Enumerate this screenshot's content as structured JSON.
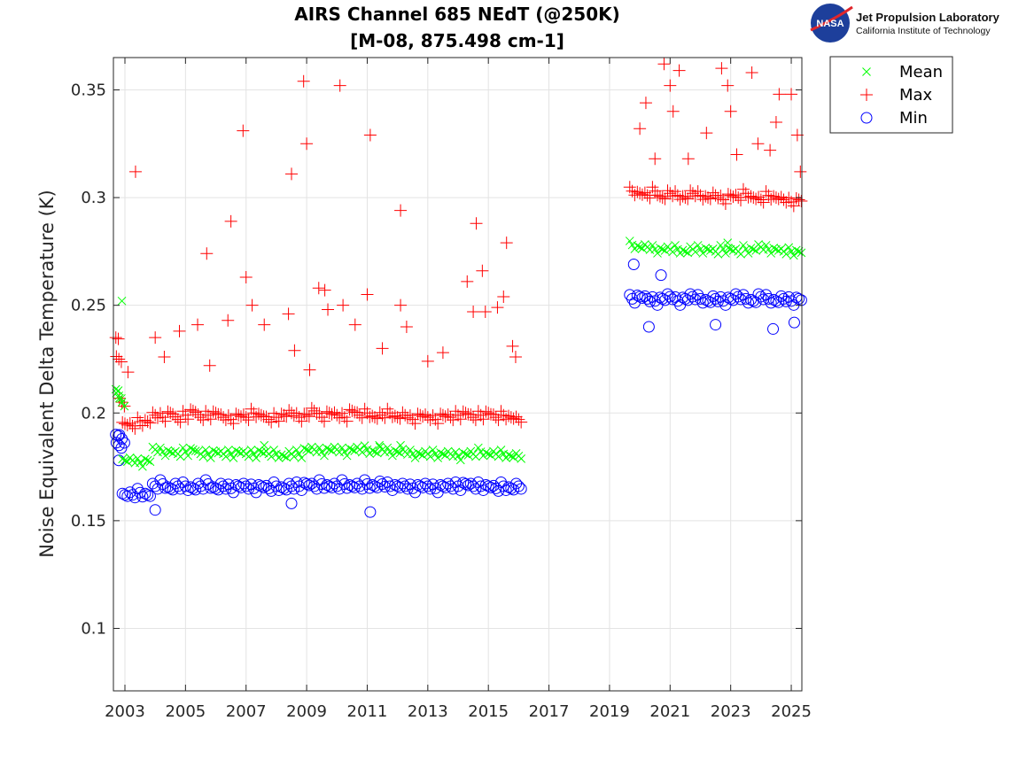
{
  "logo": {
    "agency": "NASA",
    "lab": "Jet Propulsion Laboratory",
    "institute": "California Institute of Technology"
  },
  "chart_data": {
    "type": "scatter",
    "title": [
      "AIRS Channel 685 NEdT (@250K)",
      "[M-08, 875.498 cm-1]"
    ],
    "xlabel": "",
    "ylabel": "Noise Equivalent Delta Temperature (K)",
    "xlim": [
      2002.62,
      2025.35
    ],
    "ylim": [
      0.071,
      0.365
    ],
    "xticks": [
      2003,
      2005,
      2007,
      2009,
      2011,
      2013,
      2015,
      2017,
      2019,
      2021,
      2023,
      2025
    ],
    "xtick_labels": [
      "2003",
      "2005",
      "2007",
      "2009",
      "2011",
      "2013",
      "2015",
      "2017",
      "2019",
      "2021",
      "2023",
      "2025"
    ],
    "yticks": [
      0.1,
      0.15,
      0.2,
      0.25,
      0.3,
      0.35
    ],
    "ytick_labels": [
      "0.1",
      "0.15",
      "0.2",
      "0.25",
      "0.3",
      "0.35"
    ],
    "grid": true,
    "legend_position": "outside-top-right",
    "x": [
      2002.7,
      2002.8,
      2002.9,
      2003.0,
      2003.25,
      2003.5,
      2003.75,
      2004.0,
      2004.25,
      2004.5,
      2004.75,
      2005.0,
      2005.25,
      2005.5,
      2005.75,
      2006.0,
      2006.25,
      2006.5,
      2006.75,
      2007.0,
      2007.25,
      2007.5,
      2007.75,
      2008.0,
      2008.25,
      2008.5,
      2008.75,
      2009.0,
      2009.25,
      2009.5,
      2009.75,
      2010.0,
      2010.25,
      2010.5,
      2010.75,
      2011.0,
      2011.25,
      2011.5,
      2011.75,
      2012.0,
      2012.25,
      2012.5,
      2012.75,
      2013.0,
      2013.25,
      2013.5,
      2013.75,
      2014.0,
      2014.25,
      2014.5,
      2014.75,
      2015.0,
      2015.25,
      2015.5,
      2015.75,
      2016.0,
      2019.75,
      2020.0,
      2020.25,
      2020.5,
      2020.75,
      2021.0,
      2021.25,
      2021.5,
      2021.75,
      2022.0,
      2022.25,
      2022.5,
      2022.75,
      2023.0,
      2023.25,
      2023.5,
      2023.75,
      2024.0,
      2024.25,
      2024.5,
      2024.75,
      2025.0,
      2025.25
    ],
    "series": [
      {
        "name": "Mean",
        "marker": "x",
        "color": "#00ff00",
        "values": [
          0.211,
          0.208,
          0.205,
          0.178,
          0.178,
          0.177,
          0.178,
          0.183,
          0.182,
          0.182,
          0.181,
          0.182,
          0.183,
          0.181,
          0.181,
          0.182,
          0.181,
          0.181,
          0.182,
          0.181,
          0.181,
          0.182,
          0.181,
          0.181,
          0.18,
          0.181,
          0.181,
          0.183,
          0.183,
          0.182,
          0.183,
          0.183,
          0.182,
          0.183,
          0.183,
          0.183,
          0.182,
          0.183,
          0.182,
          0.182,
          0.182,
          0.181,
          0.181,
          0.181,
          0.181,
          0.181,
          0.181,
          0.18,
          0.181,
          0.181,
          0.182,
          0.181,
          0.181,
          0.181,
          0.18,
          0.18,
          0.278,
          0.277,
          0.277,
          0.276,
          0.276,
          0.276,
          0.276,
          0.275,
          0.276,
          0.276,
          0.276,
          0.275,
          0.276,
          0.276,
          0.275,
          0.276,
          0.276,
          0.277,
          0.276,
          0.276,
          0.275,
          0.275,
          0.275
        ],
        "outliers": [
          [
            2002.9,
            0.252
          ],
          [
            2007.6,
            0.185
          ],
          [
            2011.4,
            0.185
          ],
          [
            2012.1,
            0.185
          ],
          [
            2022.9,
            0.279
          ]
        ]
      },
      {
        "name": "Max",
        "marker": "+",
        "color": "#ff0000",
        "values": [
          0.235,
          0.225,
          0.205,
          0.195,
          0.194,
          0.196,
          0.196,
          0.199,
          0.198,
          0.2,
          0.197,
          0.199,
          0.201,
          0.198,
          0.199,
          0.2,
          0.198,
          0.197,
          0.199,
          0.198,
          0.2,
          0.199,
          0.197,
          0.198,
          0.199,
          0.2,
          0.198,
          0.199,
          0.201,
          0.198,
          0.2,
          0.199,
          0.198,
          0.201,
          0.199,
          0.2,
          0.198,
          0.199,
          0.2,
          0.198,
          0.199,
          0.197,
          0.199,
          0.198,
          0.197,
          0.199,
          0.198,
          0.199,
          0.2,
          0.198,
          0.199,
          0.2,
          0.198,
          0.199,
          0.198,
          0.197,
          0.303,
          0.302,
          0.301,
          0.303,
          0.3,
          0.302,
          0.301,
          0.3,
          0.302,
          0.301,
          0.3,
          0.301,
          0.299,
          0.301,
          0.3,
          0.302,
          0.3,
          0.299,
          0.301,
          0.3,
          0.299,
          0.298,
          0.299
        ],
        "outliers": [
          [
            2003.35,
            0.312
          ],
          [
            2003.1,
            0.219
          ],
          [
            2004.0,
            0.235
          ],
          [
            2004.3,
            0.226
          ],
          [
            2004.8,
            0.238
          ],
          [
            2005.4,
            0.241
          ],
          [
            2005.7,
            0.274
          ],
          [
            2005.8,
            0.222
          ],
          [
            2006.4,
            0.243
          ],
          [
            2006.5,
            0.289
          ],
          [
            2006.9,
            0.331
          ],
          [
            2007.0,
            0.263
          ],
          [
            2007.2,
            0.25
          ],
          [
            2007.6,
            0.241
          ],
          [
            2008.4,
            0.246
          ],
          [
            2008.5,
            0.311
          ],
          [
            2008.6,
            0.229
          ],
          [
            2008.9,
            0.354
          ],
          [
            2009.0,
            0.325
          ],
          [
            2009.1,
            0.22
          ],
          [
            2009.4,
            0.258
          ],
          [
            2009.6,
            0.257
          ],
          [
            2009.7,
            0.248
          ],
          [
            2010.1,
            0.352
          ],
          [
            2010.2,
            0.25
          ],
          [
            2010.6,
            0.241
          ],
          [
            2011.0,
            0.255
          ],
          [
            2011.1,
            0.329
          ],
          [
            2011.5,
            0.23
          ],
          [
            2012.1,
            0.294
          ],
          [
            2012.1,
            0.25
          ],
          [
            2012.3,
            0.24
          ],
          [
            2013.0,
            0.224
          ],
          [
            2013.5,
            0.228
          ],
          [
            2014.3,
            0.261
          ],
          [
            2014.5,
            0.247
          ],
          [
            2014.6,
            0.288
          ],
          [
            2014.8,
            0.266
          ],
          [
            2014.9,
            0.247
          ],
          [
            2015.3,
            0.249
          ],
          [
            2015.5,
            0.254
          ],
          [
            2015.6,
            0.279
          ],
          [
            2015.8,
            0.231
          ],
          [
            2015.9,
            0.226
          ],
          [
            2020.0,
            0.332
          ],
          [
            2020.2,
            0.344
          ],
          [
            2020.5,
            0.318
          ],
          [
            2020.8,
            0.362
          ],
          [
            2021.0,
            0.352
          ],
          [
            2021.1,
            0.34
          ],
          [
            2021.3,
            0.359
          ],
          [
            2021.6,
            0.318
          ],
          [
            2022.2,
            0.33
          ],
          [
            2022.7,
            0.36
          ],
          [
            2022.9,
            0.352
          ],
          [
            2023.0,
            0.34
          ],
          [
            2023.2,
            0.32
          ],
          [
            2023.7,
            0.358
          ],
          [
            2023.9,
            0.325
          ],
          [
            2024.3,
            0.322
          ],
          [
            2024.5,
            0.335
          ],
          [
            2024.6,
            0.348
          ],
          [
            2025.0,
            0.348
          ],
          [
            2025.2,
            0.329
          ],
          [
            2025.3,
            0.312
          ]
        ]
      },
      {
        "name": "Min",
        "marker": "o",
        "color": "#0000ff",
        "values": [
          0.19,
          0.185,
          0.188,
          0.162,
          0.162,
          0.163,
          0.162,
          0.166,
          0.167,
          0.165,
          0.166,
          0.166,
          0.165,
          0.166,
          0.167,
          0.165,
          0.166,
          0.165,
          0.166,
          0.166,
          0.165,
          0.166,
          0.165,
          0.166,
          0.165,
          0.166,
          0.166,
          0.167,
          0.166,
          0.167,
          0.166,
          0.166,
          0.167,
          0.166,
          0.166,
          0.167,
          0.166,
          0.167,
          0.166,
          0.166,
          0.166,
          0.165,
          0.166,
          0.166,
          0.165,
          0.166,
          0.166,
          0.166,
          0.167,
          0.166,
          0.166,
          0.166,
          0.165,
          0.166,
          0.165,
          0.166,
          0.253,
          0.254,
          0.253,
          0.252,
          0.253,
          0.254,
          0.252,
          0.253,
          0.254,
          0.253,
          0.252,
          0.253,
          0.252,
          0.253,
          0.254,
          0.253,
          0.252,
          0.254,
          0.253,
          0.252,
          0.253,
          0.252,
          0.253
        ],
        "outliers": [
          [
            2002.8,
            0.178
          ],
          [
            2004.0,
            0.155
          ],
          [
            2008.5,
            0.158
          ],
          [
            2011.1,
            0.154
          ],
          [
            2019.8,
            0.269
          ],
          [
            2020.3,
            0.24
          ],
          [
            2020.7,
            0.264
          ],
          [
            2022.5,
            0.241
          ],
          [
            2024.4,
            0.239
          ],
          [
            2025.1,
            0.242
          ]
        ]
      }
    ]
  }
}
